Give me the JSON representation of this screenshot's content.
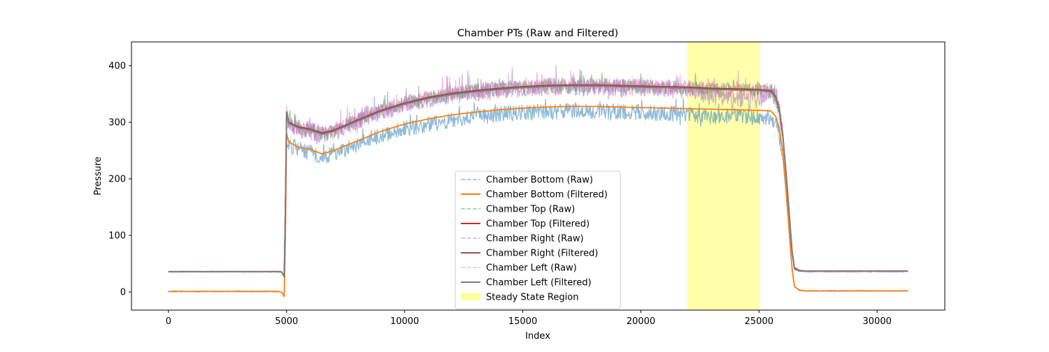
{
  "chart_data": {
    "type": "line",
    "title": "Chamber PTs (Raw and Filtered)",
    "xlabel": "Index",
    "ylabel": "Pressure",
    "xlim": [
      -1565,
      32865
    ],
    "ylim": [
      -32,
      442
    ],
    "xticks": [
      0,
      5000,
      10000,
      15000,
      20000,
      25000,
      30000
    ],
    "yticks": [
      0,
      100,
      200,
      300,
      400
    ],
    "grid": false,
    "legend_position": "lower center",
    "shaded_region": {
      "name": "Steady State Region",
      "x_start": 21950,
      "x_end": 25050,
      "color": "#ffff7f"
    },
    "series": [
      {
        "name": "Chamber Bottom (Raw)",
        "color": "#1f77b4",
        "style": "dashed",
        "alpha": 0.5,
        "noise": 14,
        "x": [
          0,
          4700,
          4800,
          4900,
          4950,
          5000,
          5100,
          5500,
          6000,
          6500,
          7000,
          8000,
          9000,
          10000,
          11000,
          12000,
          13000,
          14000,
          15000,
          16000,
          17000,
          18000,
          19000,
          20000,
          21000,
          22000,
          23000,
          24000,
          25000,
          25500,
          25700,
          25850,
          26000,
          26150,
          26300,
          26400,
          26500,
          26700,
          27000,
          29000,
          31300
        ],
        "y": [
          1,
          1,
          -1,
          -7,
          100,
          265,
          258,
          252,
          246,
          240,
          244,
          260,
          276,
          288,
          297,
          304,
          309,
          314,
          317,
          319,
          320,
          320,
          319,
          318,
          316,
          313,
          311,
          310,
          309,
          308,
          300,
          280,
          240,
          170,
          90,
          40,
          10,
          3,
          2,
          2,
          2
        ]
      },
      {
        "name": "Chamber Bottom (Filtered)",
        "color": "#ff7f0e",
        "style": "solid",
        "alpha": 1,
        "x": [
          0,
          4700,
          4800,
          4900,
          4950,
          5000,
          5100,
          5500,
          6000,
          6500,
          7000,
          8000,
          9000,
          10000,
          11000,
          12000,
          13000,
          14000,
          15000,
          16000,
          17000,
          18000,
          19000,
          20000,
          21000,
          22000,
          23000,
          24000,
          25000,
          25500,
          25700,
          25850,
          26000,
          26150,
          26300,
          26400,
          26500,
          26700,
          27000,
          29000,
          31300
        ],
        "y": [
          1,
          1,
          -1,
          -8,
          100,
          280,
          265,
          256,
          252,
          244,
          250,
          267,
          284,
          297,
          306,
          313,
          318,
          322,
          325,
          327,
          328,
          328,
          327,
          326,
          325,
          324,
          323,
          322,
          321,
          320,
          311,
          291,
          250,
          180,
          98,
          42,
          10,
          3,
          2,
          2,
          2
        ]
      },
      {
        "name": "Chamber Top (Raw)",
        "color": "#2ca02c",
        "style": "dashed",
        "alpha": 0.5,
        "noise": 12,
        "x": [
          0,
          4700,
          4800,
          4900,
          4950,
          5000,
          5100,
          5500,
          6000,
          6500,
          7000,
          8000,
          9000,
          10000,
          11000,
          12000,
          13000,
          14000,
          15000,
          16000,
          17000,
          18000,
          19000,
          20000,
          21000,
          22000,
          23000,
          24000,
          25000,
          25500,
          25700,
          25850,
          26000,
          26150,
          26300,
          26400,
          26500,
          26700,
          27000,
          29000,
          31300
        ],
        "y": [
          36,
          36,
          35,
          28,
          150,
          315,
          298,
          290,
          287,
          280,
          285,
          303,
          320,
          333,
          343,
          350,
          355,
          359,
          362,
          364,
          365,
          365,
          364,
          363,
          362,
          361,
          359,
          358,
          357,
          355,
          345,
          322,
          280,
          208,
          128,
          72,
          42,
          38,
          37,
          37,
          37
        ]
      },
      {
        "name": "Chamber Top (Filtered)",
        "color": "#d62728",
        "style": "solid",
        "alpha": 1,
        "x": [
          0,
          4700,
          4800,
          4900,
          4950,
          5000,
          5100,
          5500,
          6000,
          6500,
          7000,
          8000,
          9000,
          10000,
          11000,
          12000,
          13000,
          14000,
          15000,
          16000,
          17000,
          18000,
          19000,
          20000,
          21000,
          22000,
          23000,
          24000,
          25000,
          25500,
          25700,
          25850,
          26000,
          26150,
          26300,
          26400,
          26500,
          26700,
          27000,
          29000,
          31300
        ],
        "y": [
          36,
          36,
          35,
          27,
          150,
          318,
          300,
          292,
          288,
          281,
          286,
          304,
          321,
          334,
          344,
          351,
          356,
          360,
          363,
          365,
          366,
          366,
          365,
          364,
          363,
          362,
          360,
          359,
          358,
          356,
          346,
          323,
          281,
          209,
          129,
          73,
          43,
          38,
          37,
          37,
          37
        ]
      },
      {
        "name": "Chamber Right (Raw)",
        "color": "#9467bd",
        "style": "dashed",
        "alpha": 0.5,
        "noise": 16,
        "x": [
          0,
          4700,
          4800,
          4900,
          4950,
          5000,
          5100,
          5500,
          6000,
          6500,
          7000,
          8000,
          9000,
          10000,
          11000,
          12000,
          13000,
          14000,
          15000,
          16000,
          17000,
          18000,
          19000,
          20000,
          21000,
          22000,
          23000,
          24000,
          25000,
          25500,
          25700,
          25850,
          26000,
          26150,
          26300,
          26400,
          26500,
          26700,
          27000,
          29000,
          31300
        ],
        "y": [
          36,
          36,
          35,
          26,
          150,
          312,
          296,
          288,
          285,
          278,
          283,
          301,
          318,
          331,
          341,
          348,
          353,
          357,
          360,
          362,
          363,
          363,
          362,
          361,
          360,
          355,
          345,
          338,
          340,
          352,
          343,
          320,
          278,
          206,
          126,
          70,
          41,
          37,
          36,
          36,
          36
        ]
      },
      {
        "name": "Chamber Right (Filtered)",
        "color": "#8c564b",
        "style": "solid",
        "alpha": 1,
        "x": [
          0,
          4700,
          4800,
          4900,
          4950,
          5000,
          5100,
          5500,
          6000,
          6500,
          7000,
          8000,
          9000,
          10000,
          11000,
          12000,
          13000,
          14000,
          15000,
          16000,
          17000,
          18000,
          19000,
          20000,
          21000,
          22000,
          23000,
          24000,
          25000,
          25500,
          25700,
          25850,
          26000,
          26150,
          26300,
          26400,
          26500,
          26700,
          27000,
          29000,
          31300
        ],
        "y": [
          36,
          36,
          35,
          27,
          150,
          317,
          299,
          291,
          287,
          280,
          285,
          303,
          320,
          333,
          343,
          350,
          355,
          359,
          362,
          364,
          365,
          365,
          364,
          363,
          362,
          361,
          359,
          358,
          357,
          355,
          345,
          322,
          280,
          208,
          128,
          72,
          42,
          38,
          37,
          37,
          37
        ]
      },
      {
        "name": "Chamber Left (Raw)",
        "color": "#e377c2",
        "style": "dashed",
        "alpha": 0.5,
        "noise": 15,
        "x": [
          0,
          4700,
          4800,
          4900,
          4950,
          5000,
          5100,
          5500,
          6000,
          6500,
          7000,
          8000,
          9000,
          10000,
          11000,
          12000,
          13000,
          14000,
          15000,
          16000,
          17000,
          18000,
          19000,
          20000,
          21000,
          22000,
          23000,
          24000,
          25000,
          25500,
          25700,
          25850,
          26000,
          26150,
          26300,
          26400,
          26500,
          26700,
          27000,
          29000,
          31300
        ],
        "y": [
          36,
          36,
          35,
          26,
          150,
          316,
          298,
          290,
          286,
          279,
          284,
          302,
          319,
          332,
          342,
          349,
          354,
          358,
          361,
          363,
          364,
          364,
          363,
          362,
          361,
          360,
          358,
          357,
          356,
          354,
          344,
          321,
          279,
          207,
          127,
          71,
          41,
          37,
          36,
          36,
          36
        ]
      },
      {
        "name": "Chamber Left (Filtered)",
        "color": "#7f7f7f",
        "style": "solid",
        "alpha": 1,
        "x": [
          0,
          4700,
          4800,
          4900,
          4950,
          5000,
          5100,
          5500,
          6000,
          6500,
          7000,
          8000,
          9000,
          10000,
          11000,
          12000,
          13000,
          14000,
          15000,
          16000,
          17000,
          18000,
          19000,
          20000,
          21000,
          22000,
          23000,
          24000,
          25000,
          25500,
          25700,
          25850,
          26000,
          26150,
          26300,
          26400,
          26500,
          26700,
          27000,
          29000,
          31300
        ],
        "y": [
          36,
          36,
          35,
          27,
          150,
          316,
          298,
          290,
          286,
          279,
          284,
          302,
          319,
          332,
          342,
          349,
          354,
          358,
          361,
          363,
          364,
          364,
          363,
          362,
          361,
          360,
          358,
          357,
          356,
          354,
          344,
          321,
          279,
          207,
          127,
          71,
          41,
          37,
          37,
          37,
          37
        ]
      }
    ]
  }
}
